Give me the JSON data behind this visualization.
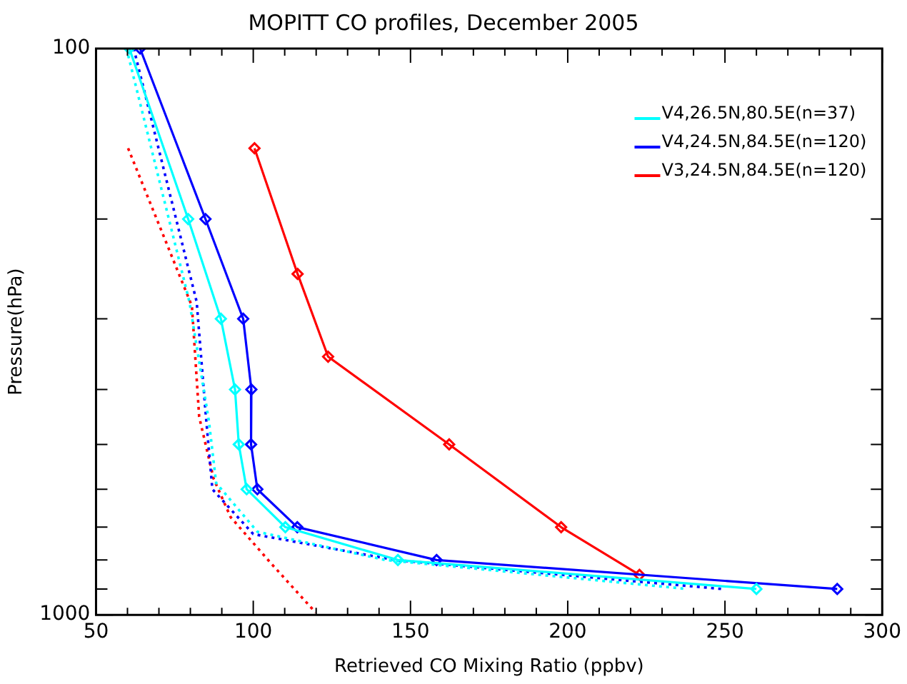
{
  "chart_data": {
    "type": "line",
    "title": "MOPITT CO profiles, December 2005",
    "xlabel": "Retrieved CO Mixing Ratio (ppbv)",
    "ylabel": "Pressure(hPa)",
    "log": "y",
    "xlim": [
      50,
      300
    ],
    "ylim": [
      1000,
      100
    ],
    "xticks": [
      50,
      {
        "value": 60,
        "label": null
      },
      {
        "value": 70,
        "label": null
      },
      {
        "value": 80,
        "label": null
      },
      {
        "value": 90,
        "label": null
      },
      100,
      {
        "value": 110,
        "label": null
      },
      {
        "value": 120,
        "label": null
      },
      {
        "value": 130,
        "label": null
      },
      {
        "value": 140,
        "label": null
      },
      150,
      {
        "value": 160,
        "label": null
      },
      {
        "value": 170,
        "label": null
      },
      {
        "value": 180,
        "label": null
      },
      {
        "value": 190,
        "label": null
      },
      200,
      {
        "value": 210,
        "label": null
      },
      {
        "value": 220,
        "label": null
      },
      {
        "value": 230,
        "label": null
      },
      {
        "value": 240,
        "label": null
      },
      250,
      {
        "value": 260,
        "label": null
      },
      {
        "value": 270,
        "label": null
      },
      {
        "value": 280,
        "label": null
      },
      {
        "value": 290,
        "label": null
      },
      300
    ],
    "yticks": [
      100,
      {
        "value": 200,
        "label": null
      },
      {
        "value": 300,
        "label": null
      },
      {
        "value": 400,
        "label": null
      },
      {
        "value": 500,
        "label": null
      },
      {
        "value": 600,
        "label": null
      },
      {
        "value": 700,
        "label": null
      },
      {
        "value": 800,
        "label": null
      },
      {
        "value": 900,
        "label": null
      },
      1000
    ],
    "grid": false,
    "legend": "top right",
    "series": [
      {
        "name": "V4,26.5N,80.5E(n=37)",
        "color": "#00ffff",
        "marker": "diamond",
        "line_style": "solid",
        "x": [
          60.6,
          79.3,
          89.7,
          94.2,
          95.4,
          97.9,
          110.2,
          146,
          260
        ],
        "values": [
          100,
          200,
          300,
          400,
          500,
          600,
          700,
          800,
          900
        ]
      },
      {
        "name": "V4,24.5N,84.5E(n=120)",
        "color": "#0000ff",
        "marker": "diamond",
        "line_style": "solid",
        "x": [
          64,
          84.8,
          96.8,
          99.4,
          99.3,
          101.3,
          114,
          158.3,
          285.7
        ],
        "values": [
          100,
          200,
          300,
          400,
          500,
          600,
          700,
          800,
          900
        ]
      },
      {
        "name": "V3,24.5N,84.5E(n=120)",
        "color": "#ff0000",
        "marker": "diamond",
        "line_style": "solid",
        "x": [
          100.4,
          114.1,
          123.8,
          162.3,
          197.9,
          222.8
        ],
        "values": [
          150,
          250,
          350,
          500,
          700,
          850
        ]
      },
      {
        "color": "#00ffff",
        "marker": "none",
        "line_style": "dotted",
        "x": [
          59.7,
          79.7,
          85.9,
          88.2,
          101.3,
          142,
          238
        ],
        "values": [
          100,
          280,
          455,
          585,
          713,
          800,
          900
        ]
      },
      {
        "color": "#0000ff",
        "marker": "none",
        "line_style": "dotted",
        "x": [
          62,
          82,
          85,
          87,
          100,
          145,
          249
        ],
        "values": [
          100,
          280,
          450,
          600,
          720,
          800,
          900
        ]
      },
      {
        "color": "#ff0000",
        "marker": "none",
        "line_style": "dotted",
        "x": [
          60.2,
          80.5,
          82.8,
          87.4,
          92.8,
          106,
          119.8
        ],
        "values": [
          150,
          285,
          447,
          575,
          672,
          815,
          990
        ]
      }
    ]
  }
}
